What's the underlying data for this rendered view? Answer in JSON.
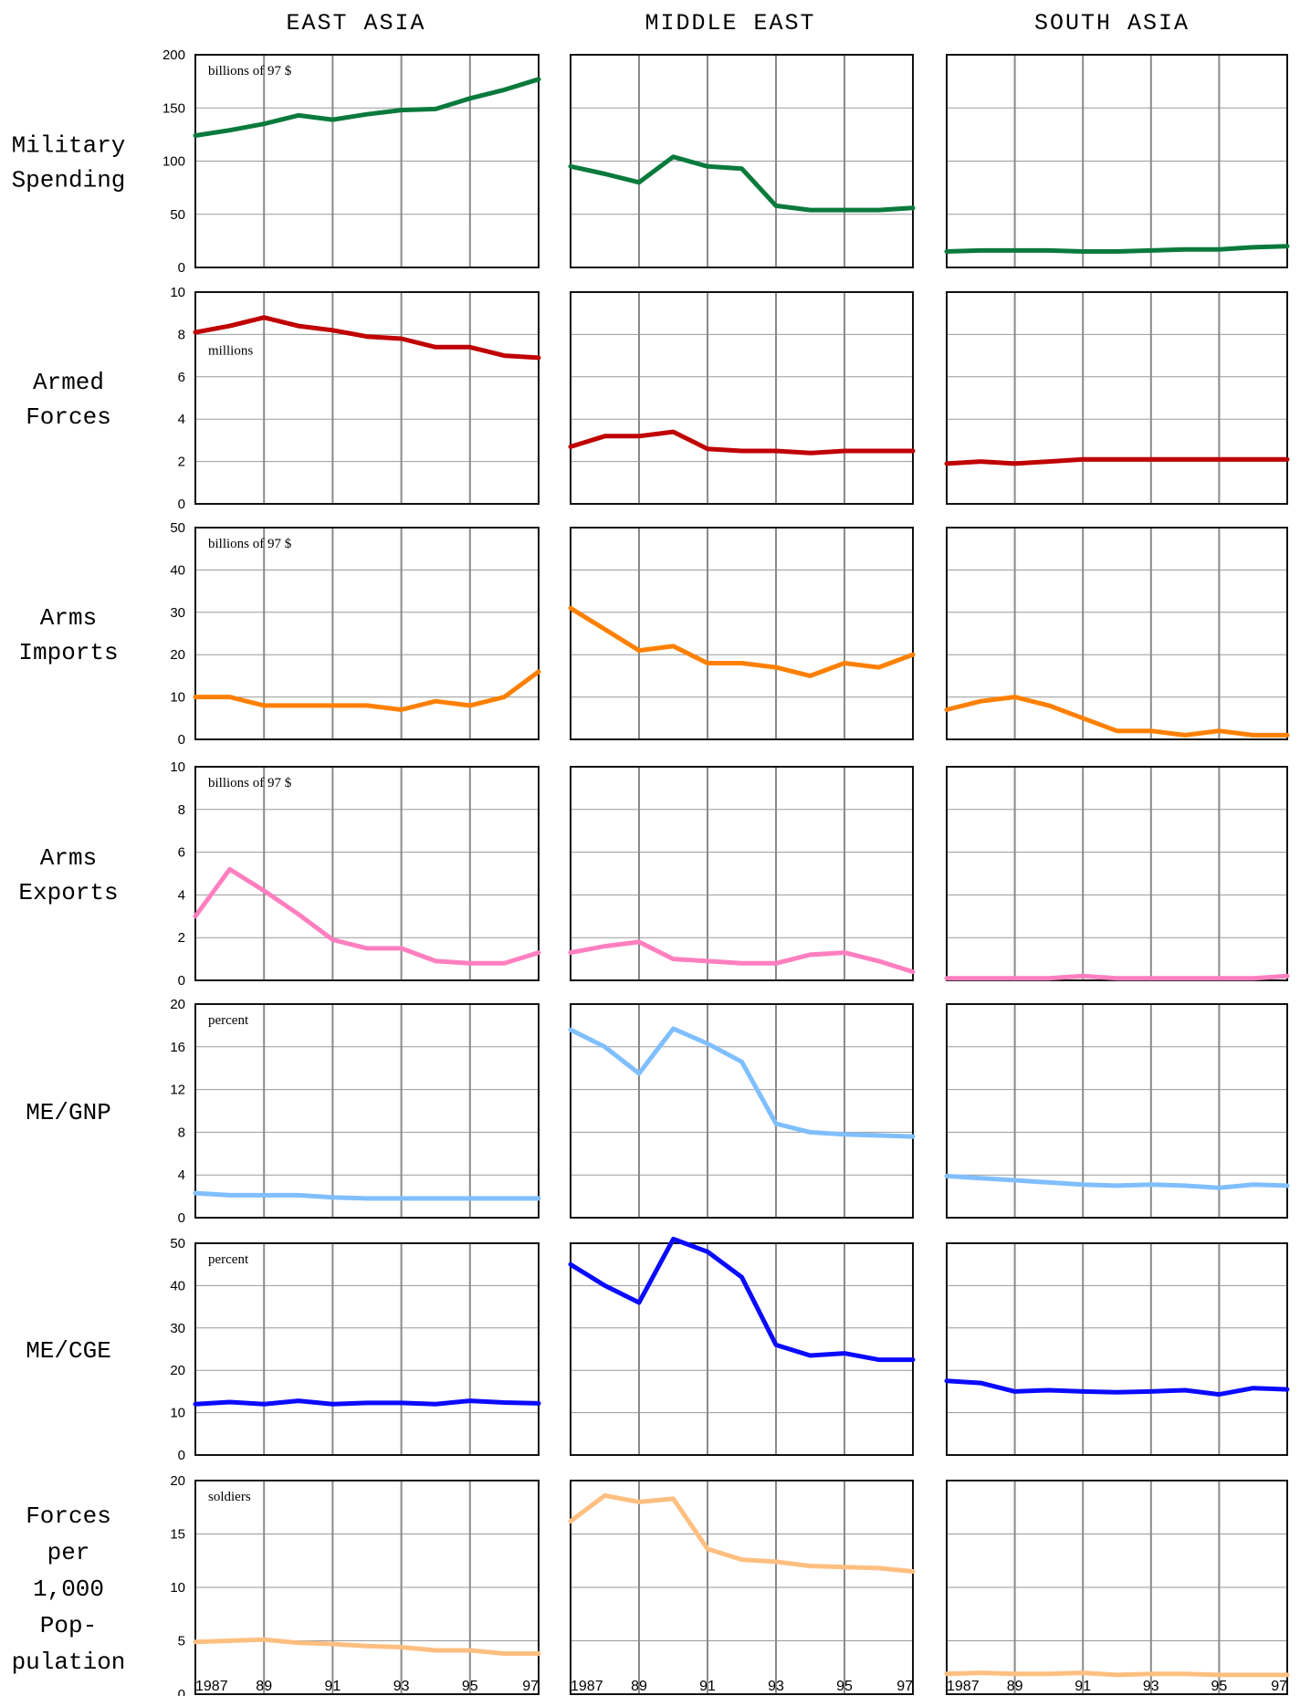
{
  "columns": [
    "EAST ASIA",
    "MIDDLE EAST",
    "SOUTH ASIA"
  ],
  "x_tick_labels": [
    "1987",
    "89",
    "91",
    "93",
    "95",
    "97"
  ],
  "x_tick_years": [
    1987,
    1989,
    1991,
    1993,
    1995,
    1997
  ],
  "chart_data": [
    {
      "type": "line",
      "title_lines": [
        "Military",
        "Spending"
      ],
      "unit": "billions of 97 $",
      "color": "#0a7a3c",
      "ylim": [
        0,
        200
      ],
      "yticks": [
        0,
        50,
        100,
        150,
        200
      ],
      "x": [
        1987,
        1988,
        1989,
        1990,
        1991,
        1992,
        1993,
        1994,
        1995,
        1996,
        1997
      ],
      "series": [
        {
          "name": "EAST ASIA",
          "values": [
            124,
            129,
            135,
            143,
            139,
            144,
            148,
            149,
            159,
            167,
            177
          ]
        },
        {
          "name": "MIDDLE EAST",
          "values": [
            95,
            88,
            80,
            104,
            95,
            93,
            58,
            54,
            54,
            54,
            56
          ]
        },
        {
          "name": "SOUTH ASIA",
          "values": [
            15,
            16,
            16,
            16,
            15,
            15,
            16,
            17,
            17,
            19,
            20
          ]
        }
      ]
    },
    {
      "type": "line",
      "title_lines": [
        "Armed",
        "Forces"
      ],
      "unit": "millions",
      "color": "#c00000",
      "ylim": [
        0,
        10
      ],
      "yticks": [
        0,
        2,
        4,
        6,
        8,
        10
      ],
      "x": [
        1987,
        1988,
        1989,
        1990,
        1991,
        1992,
        1993,
        1994,
        1995,
        1996,
        1997
      ],
      "series": [
        {
          "name": "EAST ASIA",
          "values": [
            8.1,
            8.4,
            8.8,
            8.4,
            8.2,
            7.9,
            7.8,
            7.4,
            7.4,
            7.0,
            6.9
          ]
        },
        {
          "name": "MIDDLE EAST",
          "values": [
            2.7,
            3.2,
            3.2,
            3.4,
            2.6,
            2.5,
            2.5,
            2.4,
            2.5,
            2.5,
            2.5
          ]
        },
        {
          "name": "SOUTH ASIA",
          "values": [
            1.9,
            2.0,
            1.9,
            2.0,
            2.1,
            2.1,
            2.1,
            2.1,
            2.1,
            2.1,
            2.1
          ]
        }
      ]
    },
    {
      "type": "line",
      "title_lines": [
        "Arms",
        "Imports"
      ],
      "unit": "billions of 97 $",
      "color": "#ff8000",
      "ylim": [
        0,
        50
      ],
      "yticks": [
        0,
        10,
        20,
        30,
        40,
        50
      ],
      "x": [
        1987,
        1988,
        1989,
        1990,
        1991,
        1992,
        1993,
        1994,
        1995,
        1996,
        1997
      ],
      "series": [
        {
          "name": "EAST ASIA",
          "values": [
            10,
            10,
            8,
            8,
            8,
            8,
            7,
            9,
            8,
            10,
            16
          ]
        },
        {
          "name": "MIDDLE EAST",
          "values": [
            31,
            26,
            21,
            22,
            18,
            18,
            17,
            15,
            18,
            17,
            20
          ]
        },
        {
          "name": "SOUTH ASIA",
          "values": [
            7,
            9,
            10,
            8,
            5,
            2,
            2,
            1,
            2,
            1,
            1
          ]
        }
      ]
    },
    {
      "type": "line",
      "title_lines": [
        "Arms",
        "Exports"
      ],
      "unit": "billions of 97 $",
      "color": "#ff7fbf",
      "ylim": [
        0,
        10
      ],
      "yticks": [
        0,
        2,
        4,
        6,
        8,
        10
      ],
      "x": [
        1987,
        1988,
        1989,
        1990,
        1991,
        1992,
        1993,
        1994,
        1995,
        1996,
        1997
      ],
      "series": [
        {
          "name": "EAST ASIA",
          "values": [
            3.0,
            5.2,
            4.2,
            3.1,
            1.9,
            1.5,
            1.5,
            0.9,
            0.8,
            0.8,
            1.3
          ]
        },
        {
          "name": "MIDDLE EAST",
          "values": [
            1.3,
            1.6,
            1.8,
            1.0,
            0.9,
            0.8,
            0.8,
            1.2,
            1.3,
            0.9,
            0.4
          ]
        },
        {
          "name": "SOUTH ASIA",
          "values": [
            0.1,
            0.1,
            0.1,
            0.1,
            0.2,
            0.1,
            0.1,
            0.1,
            0.1,
            0.1,
            0.2
          ]
        }
      ]
    },
    {
      "type": "line",
      "title_lines": [
        "ME/GNP"
      ],
      "unit": "percent",
      "color": "#80bfff",
      "ylim": [
        0,
        20
      ],
      "yticks": [
        0,
        4,
        8,
        12,
        16,
        20
      ],
      "x": [
        1987,
        1988,
        1989,
        1990,
        1991,
        1992,
        1993,
        1994,
        1995,
        1996,
        1997
      ],
      "series": [
        {
          "name": "EAST ASIA",
          "values": [
            2.3,
            2.1,
            2.1,
            2.1,
            1.9,
            1.8,
            1.8,
            1.8,
            1.8,
            1.8,
            1.8
          ]
        },
        {
          "name": "MIDDLE EAST",
          "values": [
            17.6,
            16.0,
            13.5,
            17.7,
            16.3,
            14.6,
            8.8,
            8.0,
            7.8,
            7.7,
            7.6
          ]
        },
        {
          "name": "SOUTH ASIA",
          "values": [
            3.9,
            3.7,
            3.5,
            3.3,
            3.1,
            3.0,
            3.1,
            3.0,
            2.8,
            3.1,
            3.0
          ]
        }
      ]
    },
    {
      "type": "line",
      "title_lines": [
        "ME/CGE"
      ],
      "unit": "percent",
      "color": "#0a0aff",
      "ylim": [
        0,
        50
      ],
      "yticks": [
        0,
        10,
        20,
        30,
        40,
        50
      ],
      "x": [
        1987,
        1988,
        1989,
        1990,
        1991,
        1992,
        1993,
        1994,
        1995,
        1996,
        1997
      ],
      "series": [
        {
          "name": "EAST ASIA",
          "values": [
            12,
            12.5,
            12,
            12.8,
            12,
            12.3,
            12.3,
            12,
            12.8,
            12.4,
            12.2
          ]
        },
        {
          "name": "MIDDLE EAST",
          "values": [
            45,
            40,
            36,
            51,
            48,
            42,
            26,
            23.5,
            24,
            22.5,
            22.5
          ]
        },
        {
          "name": "SOUTH ASIA",
          "values": [
            17.5,
            17,
            15,
            15.3,
            15,
            14.8,
            15,
            15.3,
            14.3,
            15.8,
            15.5
          ]
        }
      ]
    },
    {
      "type": "line",
      "title_lines": [
        "Forces",
        "per",
        "1,000",
        "Pop-",
        "pulation"
      ],
      "unit": "soldiers",
      "color": "#ffbf80",
      "ylim": [
        0,
        20
      ],
      "yticks": [
        0,
        5,
        10,
        15,
        20
      ],
      "x": [
        1987,
        1988,
        1989,
        1990,
        1991,
        1992,
        1993,
        1994,
        1995,
        1996,
        1997
      ],
      "series": [
        {
          "name": "EAST ASIA",
          "values": [
            4.9,
            5.0,
            5.1,
            4.8,
            4.7,
            4.5,
            4.4,
            4.1,
            4.1,
            3.8,
            3.8
          ]
        },
        {
          "name": "MIDDLE EAST",
          "values": [
            16.2,
            18.6,
            18.0,
            18.3,
            13.6,
            12.6,
            12.4,
            12.0,
            11.9,
            11.8,
            11.5
          ]
        },
        {
          "name": "SOUTH ASIA",
          "values": [
            1.9,
            2.0,
            1.9,
            1.9,
            2.0,
            1.8,
            1.9,
            1.9,
            1.8,
            1.8,
            1.8
          ]
        }
      ]
    }
  ]
}
